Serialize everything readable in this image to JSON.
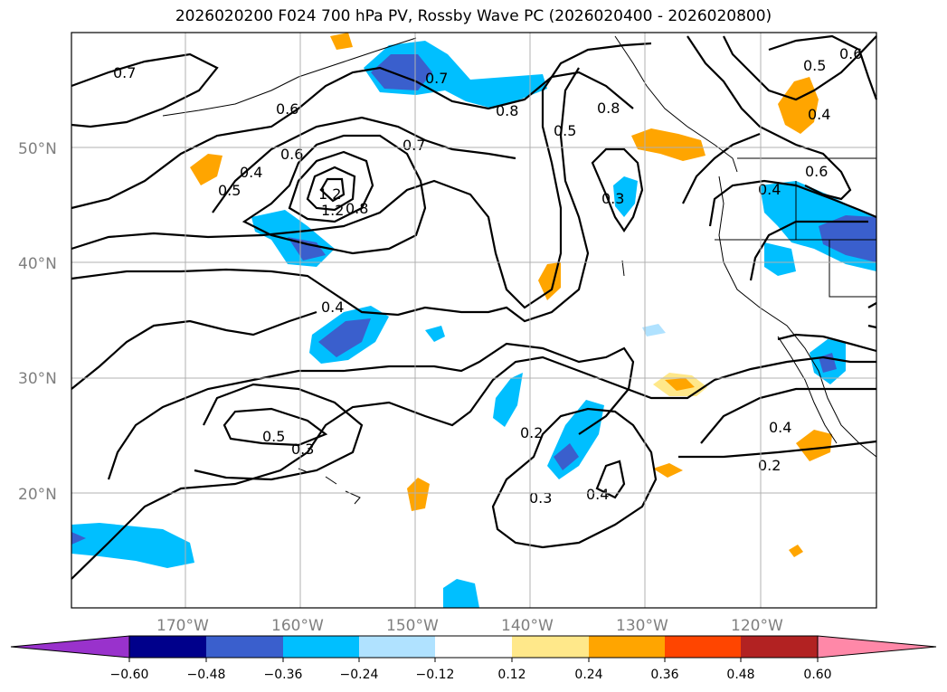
{
  "title": "2026020200 F024 700 hPa PV, Rossby Wave PC (2026020400 - 2026020800)",
  "lat_labels": [
    "50°N",
    "40°N",
    "30°N",
    "20°N"
  ],
  "lon_labels": [
    "170°W",
    "160°W",
    "150°W",
    "140°W",
    "130°W",
    "120°W"
  ],
  "contour_labels": [
    "0.7",
    "0.6",
    "0.6",
    "0.5",
    "0.4",
    "0.7",
    "0.7",
    "0.8",
    "0.5",
    "0.8",
    "1.2",
    "1.2",
    "0.8",
    "0.4",
    "0.5",
    "0.3",
    "0.2",
    "0.3",
    "0.4",
    "0.4",
    "0.2",
    "0.5",
    "0.6",
    "0.4",
    "0.6",
    "0.4",
    "0.3"
  ],
  "colorbar": {
    "ticks": [
      "−0.60",
      "−0.48",
      "−0.36",
      "−0.24",
      "−0.12",
      "0.12",
      "0.24",
      "0.36",
      "0.48",
      "0.60"
    ],
    "colors": [
      "#9932cc",
      "#00008b",
      "#3a5fcd",
      "#00bfff",
      "#b0e2ff",
      "#ffffff",
      "#ffe88a",
      "#ffa500",
      "#ff4500",
      "#b22222",
      "#ff88a8"
    ]
  },
  "chart_data": {
    "type": "map-contour",
    "variable": "700 hPa PV with Rossby Wave PC shading",
    "lat_range": [
      10,
      60
    ],
    "lon_range": [
      -180,
      -110
    ],
    "gridlines": true,
    "contour_levels": [
      0.2,
      0.3,
      0.4,
      0.5,
      0.6,
      0.7,
      0.8,
      1.2
    ],
    "shading_levels": [
      -0.6,
      -0.48,
      -0.36,
      -0.24,
      -0.12,
      0.12,
      0.24,
      0.36,
      0.48,
      0.6
    ]
  }
}
